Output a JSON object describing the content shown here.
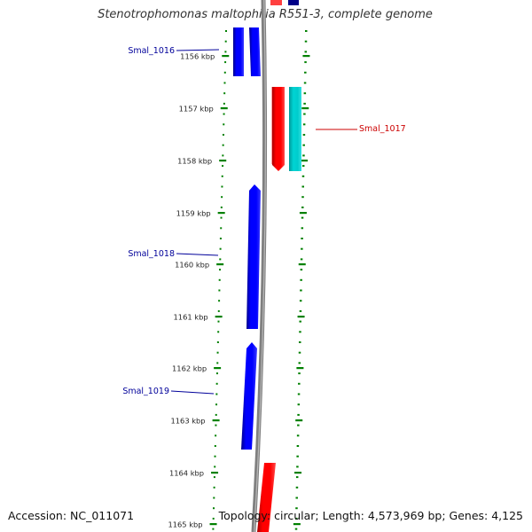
{
  "title": "Stenotrophomonas maltophilia R551-3, complete genome",
  "footer": {
    "accession": "Accession: NC_011071",
    "summary": "Topology: circular; Length: 4,573,969 bp; Genes: 4,125"
  },
  "colors": {
    "forward_gene": "#0000ff",
    "reverse_gene": "#ff0000",
    "cds_reverse": "#00cccc",
    "backbone": "#7f7f7f",
    "ticks": "#008000",
    "forward_label": "#00009a",
    "reverse_label": "#cc0000",
    "scale_label": "#222222"
  },
  "scale": {
    "unit": "kbp",
    "labels": [
      "1156 kbp",
      "1157 kbp",
      "1158 kbp",
      "1159 kbp",
      "1160 kbp",
      "1161 kbp",
      "1162 kbp",
      "1163 kbp",
      "1164 kbp",
      "1165 kbp"
    ]
  },
  "gene_labels": [
    {
      "text": "Smal_1016",
      "strand": "forward"
    },
    {
      "text": "Smal_1017",
      "strand": "reverse"
    },
    {
      "text": "Smal_1018",
      "strand": "forward"
    },
    {
      "text": "Smal_1019",
      "strand": "forward"
    }
  ]
}
